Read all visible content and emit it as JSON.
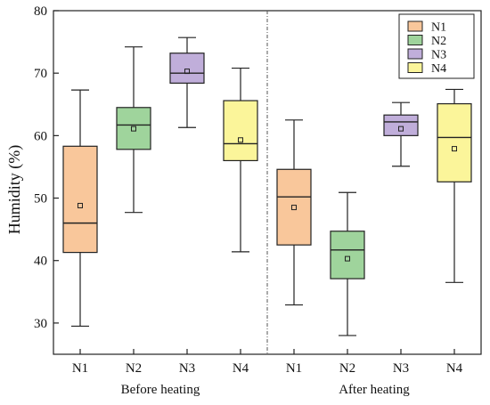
{
  "chart_data": {
    "type": "boxplot",
    "ylabel": "Humidity (%)",
    "ylim": [
      25,
      80
    ],
    "yticks": [
      30,
      40,
      50,
      60,
      70,
      80
    ],
    "grid": false,
    "legend_placement": "top-right",
    "separator": "dash-dot vertical line between groups",
    "groups": [
      {
        "label": "Before heating",
        "categories": [
          "N1",
          "N2",
          "N3",
          "N4"
        ]
      },
      {
        "label": "After heating",
        "categories": [
          "N1",
          "N2",
          "N3",
          "N4"
        ]
      }
    ],
    "series": [
      {
        "name": "N1",
        "color": "#F9C79B",
        "boxes": [
          {
            "group": "Before heating",
            "min": 29.5,
            "q1": 41.3,
            "median": 46.0,
            "q3": 58.3,
            "max": 67.3,
            "mean": 48.8
          },
          {
            "group": "After heating",
            "min": 32.9,
            "q1": 42.5,
            "median": 50.2,
            "q3": 54.6,
            "max": 62.5,
            "mean": 48.5
          }
        ]
      },
      {
        "name": "N2",
        "color": "#9FD49C",
        "boxes": [
          {
            "group": "Before heating",
            "min": 47.7,
            "q1": 57.8,
            "median": 61.7,
            "q3": 64.5,
            "max": 74.2,
            "mean": 61.1
          },
          {
            "group": "After heating",
            "min": 28.0,
            "q1": 37.1,
            "median": 41.7,
            "q3": 44.7,
            "max": 50.9,
            "mean": 40.3
          }
        ]
      },
      {
        "name": "N3",
        "color": "#C0AEDA",
        "boxes": [
          {
            "group": "Before heating",
            "min": 61.3,
            "q1": 68.4,
            "median": 70.0,
            "q3": 73.2,
            "max": 75.7,
            "mean": 70.3
          },
          {
            "group": "After heating",
            "min": 55.1,
            "q1": 60.0,
            "median": 62.2,
            "q3": 63.3,
            "max": 65.3,
            "mean": 61.1
          }
        ]
      },
      {
        "name": "N4",
        "color": "#FBF59A",
        "boxes": [
          {
            "group": "Before heating",
            "min": 41.4,
            "q1": 56.0,
            "median": 58.7,
            "q3": 65.6,
            "max": 70.8,
            "mean": 59.3
          },
          {
            "group": "After heating",
            "min": 36.5,
            "q1": 52.6,
            "median": 59.7,
            "q3": 65.1,
            "max": 67.4,
            "mean": 57.9
          }
        ]
      }
    ]
  }
}
